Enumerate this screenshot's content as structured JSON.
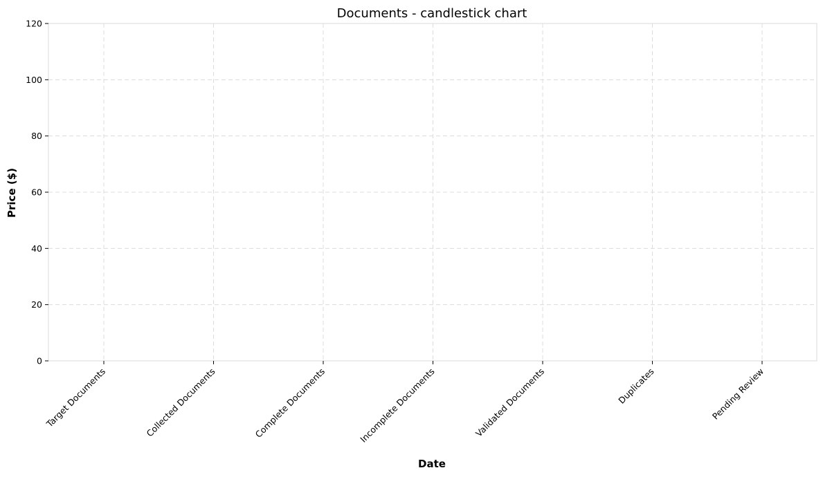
{
  "chart_data": {
    "type": "candlestick",
    "title": "Documents - candlestick chart",
    "xlabel": "Date",
    "ylabel": "Price ($)",
    "categories": [
      "Target Documents",
      "Collected Documents",
      "Complete Documents",
      "Incomplete Documents",
      "Validated Documents",
      "Duplicates",
      "Pending Review"
    ],
    "ylim": [
      0,
      120
    ],
    "yticks": [
      0,
      20,
      40,
      60,
      80,
      100,
      120
    ],
    "series": [],
    "grid": true,
    "legend": "none"
  }
}
